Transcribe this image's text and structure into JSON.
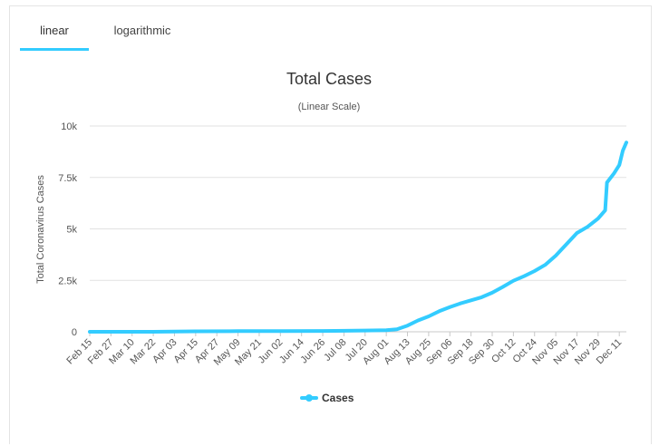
{
  "tabs": [
    {
      "label": "linear",
      "active": true
    },
    {
      "label": "logarithmic",
      "active": false
    }
  ],
  "chart_data": {
    "type": "line",
    "title": "Total Cases",
    "subtitle": "(Linear Scale)",
    "ylabel": "Total Coronavirus Cases",
    "xlabel": "",
    "ylim": [
      0,
      10000
    ],
    "y_ticks": [
      0,
      2500,
      5000,
      7500,
      10000
    ],
    "y_tick_labels": [
      "0",
      "2.5k",
      "5k",
      "7.5k",
      "10k"
    ],
    "x_tick_labels": [
      "Feb 15",
      "Feb 27",
      "Mar 10",
      "Mar 22",
      "Apr 03",
      "Apr 15",
      "Apr 27",
      "May 09",
      "May 21",
      "Jun 02",
      "Jun 14",
      "Jun 26",
      "Jul 08",
      "Jul 20",
      "Aug 01",
      "Aug 13",
      "Aug 25",
      "Sep 06",
      "Sep 18",
      "Sep 30",
      "Oct 12",
      "Oct 24",
      "Nov 05",
      "Nov 17",
      "Nov 29",
      "Dec 11"
    ],
    "grid": true,
    "legend": "bottom-center",
    "series": [
      {
        "name": "Cases",
        "color": "#33ccff",
        "points": [
          [
            "Feb 15",
            0
          ],
          [
            "Mar 22",
            2
          ],
          [
            "Apr 15",
            20
          ],
          [
            "May 09",
            30
          ],
          [
            "Jun 02",
            35
          ],
          [
            "Jun 26",
            40
          ],
          [
            "Jul 20",
            60
          ],
          [
            "Aug 01",
            80
          ],
          [
            "Aug 07",
            120
          ],
          [
            "Aug 13",
            300
          ],
          [
            "Aug 19",
            550
          ],
          [
            "Aug 25",
            750
          ],
          [
            "Aug 31",
            1000
          ],
          [
            "Sep 06",
            1200
          ],
          [
            "Sep 12",
            1380
          ],
          [
            "Sep 18",
            1530
          ],
          [
            "Sep 24",
            1680
          ],
          [
            "Sep 30",
            1900
          ],
          [
            "Oct 06",
            2180
          ],
          [
            "Oct 12",
            2480
          ],
          [
            "Oct 18",
            2700
          ],
          [
            "Oct 24",
            2950
          ],
          [
            "Oct 30",
            3250
          ],
          [
            "Nov 05",
            3700
          ],
          [
            "Nov 11",
            4250
          ],
          [
            "Nov 17",
            4800
          ],
          [
            "Nov 23",
            5100
          ],
          [
            "Nov 29",
            5500
          ],
          [
            "Dec 03",
            5900
          ],
          [
            "Dec 04",
            7250
          ],
          [
            "Dec 08",
            7700
          ],
          [
            "Dec 11",
            8100
          ],
          [
            "Dec 13",
            8800
          ],
          [
            "Dec 15",
            9200
          ]
        ]
      }
    ]
  }
}
